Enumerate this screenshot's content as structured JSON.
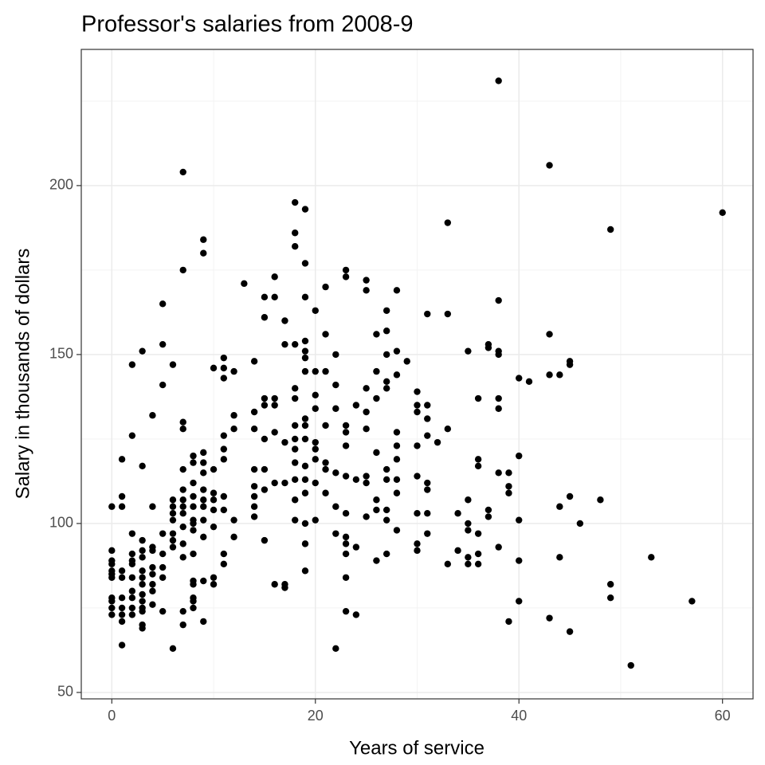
{
  "chart_data": {
    "type": "scatter",
    "title": "Professor's salaries from 2008-9",
    "x_label": "Years of service",
    "y_label": "Salary in thousands of dollars",
    "color": "#000000",
    "xlim": [
      -3,
      63
    ],
    "xticks": [
      0,
      20,
      40,
      60
    ],
    "ylim": [
      48.1,
      240.3
    ],
    "yticks": [
      50,
      100,
      150,
      200
    ],
    "grid": true,
    "minor_grid": true,
    "x": [
      0,
      0,
      0,
      0,
      0,
      0,
      0,
      0,
      0,
      0,
      0,
      1,
      1,
      1,
      1,
      1,
      1,
      1,
      1,
      1,
      1,
      2,
      2,
      2,
      2,
      2,
      2,
      2,
      2,
      2,
      2,
      2,
      3,
      3,
      3,
      3,
      3,
      3,
      3,
      3,
      3,
      3,
      3,
      3,
      3,
      3,
      4,
      4,
      4,
      4,
      4,
      4,
      4,
      4,
      4,
      5,
      5,
      5,
      5,
      5,
      5,
      5,
      5,
      6,
      6,
      6,
      6,
      6,
      6,
      6,
      6,
      6,
      7,
      7,
      7,
      7,
      7,
      7,
      7,
      7,
      7,
      7,
      7,
      7,
      7,
      7,
      8,
      8,
      8,
      8,
      8,
      8,
      8,
      8,
      8,
      8,
      8,
      8,
      8,
      8,
      9,
      9,
      9,
      9,
      9,
      9,
      9,
      9,
      9,
      9,
      9,
      9,
      10,
      10,
      10,
      10,
      10,
      10,
      10,
      10,
      11,
      11,
      11,
      11,
      11,
      11,
      11,
      11,
      11,
      11,
      12,
      12,
      12,
      12,
      12,
      13,
      14,
      14,
      14,
      14,
      14,
      14,
      14,
      14,
      15,
      15,
      15,
      15,
      15,
      15,
      15,
      15,
      16,
      16,
      16,
      16,
      16,
      16,
      16,
      17,
      17,
      17,
      17,
      17,
      17,
      18,
      18,
      18,
      18,
      18,
      18,
      18,
      18,
      18,
      18,
      18,
      18,
      18,
      19,
      19,
      19,
      19,
      19,
      19,
      19,
      19,
      19,
      19,
      19,
      19,
      19,
      19,
      19,
      19,
      20,
      20,
      20,
      20,
      20,
      20,
      20,
      20,
      20,
      21,
      21,
      21,
      21,
      21,
      21,
      21,
      22,
      22,
      22,
      22,
      22,
      22,
      22,
      23,
      23,
      23,
      23,
      23,
      23,
      23,
      23,
      23,
      23,
      23,
      23,
      24,
      24,
      24,
      24,
      25,
      25,
      25,
      25,
      25,
      25,
      25,
      25,
      26,
      26,
      26,
      26,
      26,
      26,
      26,
      27,
      27,
      27,
      27,
      27,
      27,
      27,
      27,
      27,
      27,
      28,
      28,
      28,
      28,
      28,
      28,
      28,
      28,
      28,
      29,
      30,
      30,
      30,
      30,
      30,
      30,
      30,
      30,
      31,
      31,
      31,
      31,
      31,
      31,
      31,
      31,
      32,
      33,
      33,
      33,
      33,
      34,
      34,
      35,
      35,
      35,
      35,
      35,
      35,
      36,
      36,
      36,
      36,
      36,
      36,
      37,
      37,
      37,
      37,
      38,
      38,
      38,
      38,
      38,
      38,
      38,
      38,
      39,
      39,
      39,
      39,
      40,
      40,
      40,
      40,
      40,
      41,
      43,
      43,
      43,
      43,
      44,
      44,
      44,
      45,
      45,
      45,
      45,
      46,
      48,
      49,
      49,
      49,
      51,
      53,
      57,
      60
    ],
    "y": [
      105,
      92,
      89,
      88,
      86,
      85,
      84,
      78,
      77,
      75,
      73,
      119,
      108,
      105,
      86,
      84,
      78,
      75,
      73,
      71,
      64,
      147,
      126,
      97,
      91,
      89,
      88,
      84,
      80,
      78,
      75,
      73,
      151,
      117,
      95,
      92,
      90,
      86,
      84,
      82,
      79,
      77,
      75,
      74,
      70,
      69,
      132,
      105,
      93,
      92,
      87,
      85,
      82,
      80,
      76,
      165,
      153,
      141,
      97,
      91,
      87,
      84,
      74,
      147,
      107,
      105,
      103,
      101,
      97,
      95,
      93,
      63,
      204,
      175,
      130,
      128,
      116,
      110,
      107,
      105,
      103,
      99,
      94,
      90,
      74,
      70,
      120,
      118,
      112,
      108,
      105,
      101,
      100,
      98,
      91,
      83,
      82,
      78,
      77,
      75,
      184,
      180,
      121,
      118,
      115,
      110,
      107,
      105,
      101,
      96,
      83,
      71,
      146,
      116,
      109,
      107,
      104,
      99,
      84,
      82,
      149,
      146,
      143,
      126,
      122,
      119,
      108,
      104,
      91,
      88,
      145,
      132,
      128,
      101,
      96,
      171,
      148,
      133,
      128,
      116,
      111,
      108,
      105,
      102,
      167,
      161,
      137,
      135,
      125,
      116,
      110,
      95,
      173,
      167,
      137,
      135,
      127,
      112,
      82,
      160,
      153,
      124,
      112,
      82,
      81,
      195,
      186,
      182,
      153,
      140,
      137,
      129,
      125,
      122,
      118,
      113,
      107,
      101,
      193,
      177,
      167,
      154,
      151,
      149,
      145,
      131,
      129,
      125,
      117,
      113,
      109,
      100,
      94,
      86,
      163,
      145,
      138,
      134,
      124,
      122,
      119,
      112,
      101,
      170,
      156,
      145,
      129,
      118,
      116,
      109,
      150,
      141,
      134,
      115,
      105,
      97,
      63,
      175,
      173,
      129,
      127,
      123,
      114,
      103,
      96,
      94,
      91,
      84,
      74,
      135,
      113,
      93,
      73,
      172,
      169,
      140,
      133,
      128,
      114,
      112,
      102,
      156,
      145,
      137,
      121,
      107,
      104,
      89,
      163,
      157,
      150,
      142,
      140,
      116,
      113,
      104,
      101,
      91,
      169,
      151,
      144,
      127,
      123,
      119,
      113,
      109,
      98,
      148,
      139,
      135,
      133,
      123,
      114,
      103,
      94,
      92,
      162,
      135,
      131,
      126,
      112,
      110,
      103,
      97,
      124,
      189,
      162,
      128,
      88,
      103,
      92,
      151,
      107,
      100,
      98,
      90,
      88,
      137,
      119,
      117,
      97,
      91,
      88,
      153,
      152,
      104,
      102,
      231,
      166,
      151,
      150,
      137,
      134,
      115,
      93,
      115,
      111,
      109,
      71,
      143,
      120,
      101,
      89,
      77,
      142,
      206,
      156,
      144,
      72,
      144,
      105,
      90,
      148,
      147,
      108,
      68,
      100,
      107,
      187,
      82,
      78,
      58,
      90,
      77,
      192
    ]
  }
}
